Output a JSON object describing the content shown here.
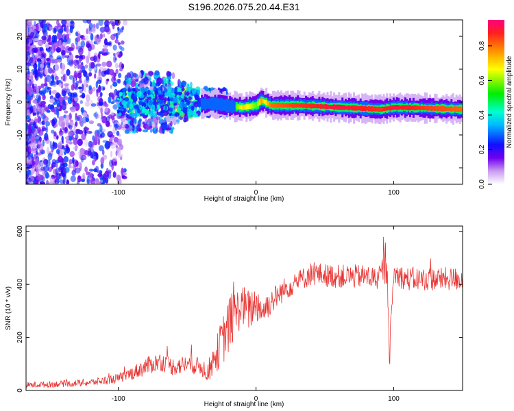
{
  "title": "S196.2026.075.20.44.E31",
  "chart_data": [
    {
      "type": "heatmap",
      "xlabel": "Height of straight line (km)",
      "ylabel": "Frequency (Hz)",
      "xlim": [
        -167,
        150
      ],
      "ylim": [
        -25,
        25
      ],
      "xticks": [
        -100,
        0,
        100
      ],
      "yticks": [
        -20,
        -10,
        0,
        10,
        20
      ],
      "ridge": {
        "x": [
          -30,
          -20,
          -10,
          0,
          3,
          6,
          10,
          30,
          60,
          90,
          100,
          120,
          150
        ],
        "freq": [
          -0.5,
          -1.2,
          -1.6,
          -1.0,
          0.5,
          0.0,
          -1.0,
          -1.0,
          -1.6,
          -2.2,
          -1.6,
          -1.8,
          -2.2
        ],
        "amplitude": [
          0.35,
          0.45,
          0.75,
          0.6,
          0.8,
          0.7,
          0.85,
          0.9,
          0.95,
          0.9,
          0.95,
          0.9,
          0.85
        ]
      },
      "colorbar": {
        "label": "Normalized spectral amplitude",
        "range": [
          0,
          0.95
        ],
        "ticks": [
          "0.0",
          "0.2",
          "0.4",
          "0.6",
          "0.8"
        ]
      }
    },
    {
      "type": "line",
      "xlabel": "Height of straight line (km)",
      "ylabel": "SNR (10 * v/v)",
      "xlim": [
        -167,
        150
      ],
      "ylim": [
        0,
        620
      ],
      "xticks": [
        -100,
        0,
        100
      ],
      "yticks": [
        0,
        200,
        400,
        600
      ],
      "color": "#e8312f",
      "series": [
        {
          "name": "SNR",
          "x": [
            -167,
            -140,
            -120,
            -100,
            -90,
            -80,
            -70,
            -60,
            -50,
            -40,
            -35,
            -30,
            -25,
            -20,
            -15,
            -10,
            -5,
            0,
            5,
            10,
            20,
            30,
            40,
            60,
            80,
            90,
            95,
            97,
            100,
            110,
            130,
            150
          ],
          "y": [
            20,
            25,
            30,
            45,
            65,
            90,
            110,
            90,
            100,
            90,
            70,
            120,
            180,
            240,
            290,
            320,
            300,
            330,
            300,
            330,
            380,
            410,
            440,
            430,
            430,
            420,
            500,
            140,
            440,
            420,
            420,
            420
          ],
          "spread": [
            12,
            12,
            14,
            18,
            25,
            35,
            35,
            35,
            35,
            35,
            40,
            60,
            90,
            110,
            90,
            80,
            80,
            70,
            60,
            50,
            45,
            40,
            45,
            45,
            45,
            45,
            100,
            60,
            45,
            45,
            45,
            45
          ]
        }
      ]
    }
  ]
}
